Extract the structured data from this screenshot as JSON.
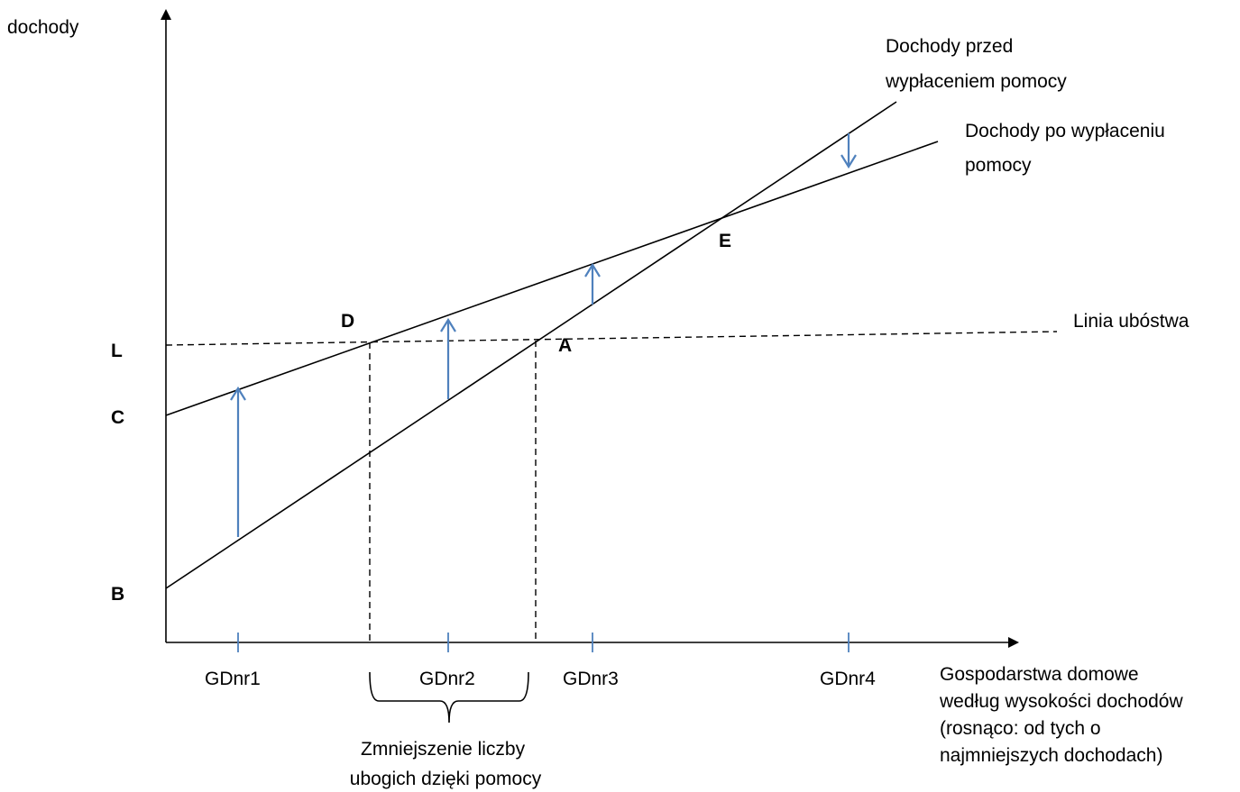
{
  "axes": {
    "y_label": "dochody",
    "x_label_lines": [
      "Gospodarstwa domowe",
      "według wysokości dochodów",
      "(rosnąco: od tych o",
      "najmniejszych dochodach)"
    ]
  },
  "points": {
    "L": "L",
    "C": "C",
    "B": "B",
    "D": "D",
    "A": "A",
    "E": "E"
  },
  "lines": {
    "before_lines": [
      "Dochody przed",
      "wypłaceniem pomocy"
    ],
    "after_lines": [
      "Dochody po  wypłaceniu",
      "pomocy"
    ],
    "poverty": "Linia ubóstwa"
  },
  "households": [
    "GDnr1",
    "GDnr2",
    "GDnr3",
    "GDnr4"
  ],
  "brace_note_lines": [
    "Zmniejszenie liczby",
    "ubogich dzięki pomocy"
  ],
  "colors": {
    "arrow": "#4f81bd",
    "line": "#000000"
  }
}
